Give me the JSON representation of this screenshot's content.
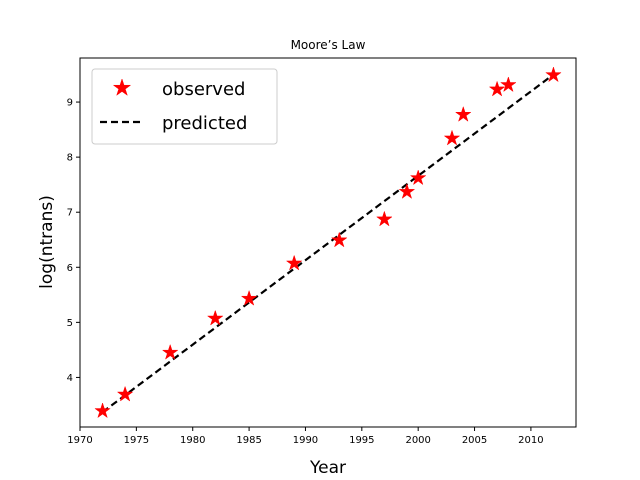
{
  "chart_data": {
    "type": "scatter",
    "title": "Moore’s Law",
    "xlabel": "Year",
    "ylabel": "log(ntrans)",
    "xlim": [
      1970,
      2014
    ],
    "ylim": [
      3.1,
      9.8
    ],
    "xticks": [
      1970,
      1975,
      1980,
      1985,
      1990,
      1995,
      2000,
      2005,
      2010
    ],
    "yticks": [
      4,
      5,
      6,
      7,
      8,
      9
    ],
    "grid": false,
    "legend_position": "top-left",
    "series": [
      {
        "name": "observed",
        "kind": "markers",
        "marker": "star",
        "color": "#ff0000",
        "x": [
          1972,
          1974,
          1978,
          1982,
          1985,
          1989,
          1993,
          1997,
          1999,
          2000,
          2003,
          2004,
          2007,
          2008,
          2012
        ],
        "y": [
          3.39,
          3.69,
          4.45,
          5.07,
          5.43,
          6.07,
          6.49,
          6.87,
          7.37,
          7.62,
          8.34,
          8.77,
          9.23,
          9.31,
          9.49
        ]
      },
      {
        "name": "predicted",
        "kind": "line",
        "linestyle": "dashed",
        "color": "#000000",
        "x": [
          1972,
          2012
        ],
        "y": [
          3.37,
          9.5
        ]
      }
    ]
  }
}
